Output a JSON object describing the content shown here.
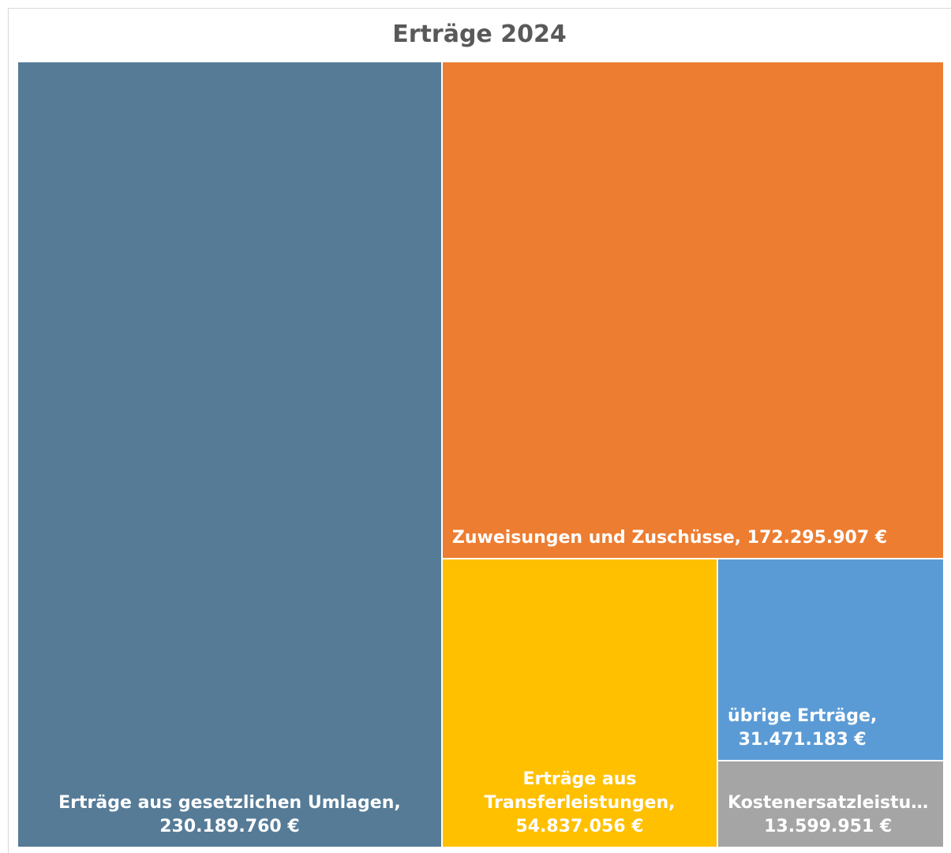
{
  "chart_data": {
    "type": "treemap",
    "title": "Erträge 2024",
    "categories": [
      "Erträge aus gesetzlichen Umlagen,",
      "Zuweisungen und Zuschüsse,",
      "Erträge aus Transferleistungen,",
      "übrige Erträge,",
      "Kostenersatzleistu…"
    ],
    "values": [
      230189760,
      172295907,
      54837056,
      31471183,
      13599951
    ],
    "value_labels": [
      "230.189.760 €",
      "172.295.907 €",
      "54.837.056 €",
      "31.471.183 €",
      "13.599.951 €"
    ],
    "colors": [
      "#557b97",
      "#ed7d31",
      "#ffc000",
      "#5b9bd5",
      "#a5a5a5"
    ]
  }
}
